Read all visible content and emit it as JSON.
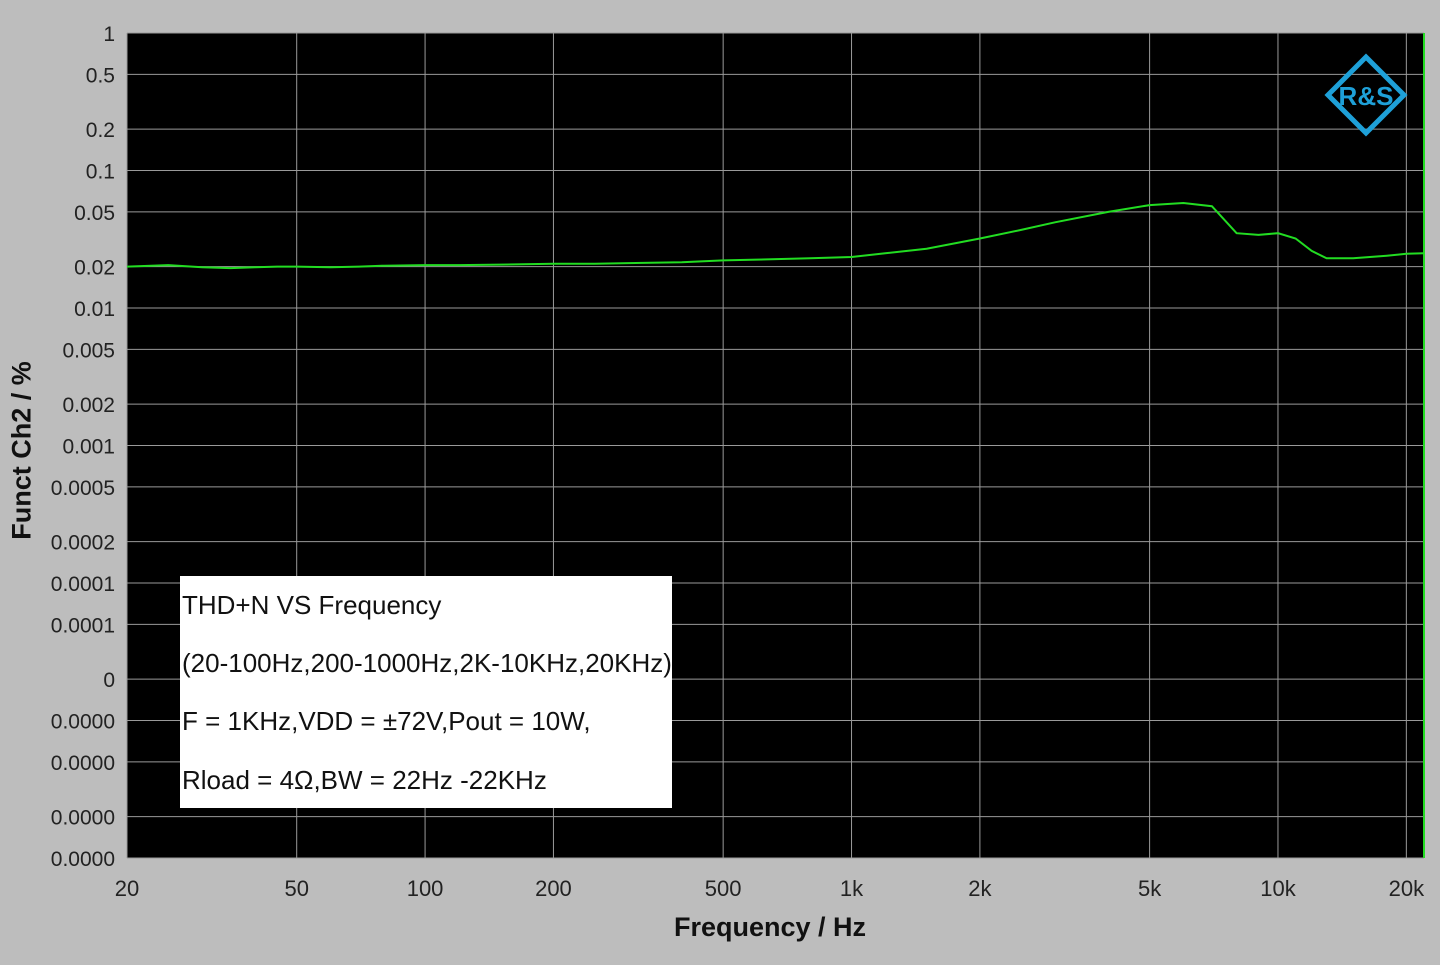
{
  "chart_data": {
    "type": "line",
    "xlabel": "Frequency / Hz",
    "ylabel": "Funct Ch2 / %",
    "x_scale": "log",
    "xlim": [
      20,
      22000
    ],
    "x_ticks": [
      20,
      50,
      100,
      200,
      500,
      1000,
      2000,
      5000,
      10000,
      20000
    ],
    "x_tick_labels": [
      "20",
      "50",
      "100",
      "200",
      "500",
      "1k",
      "2k",
      "5k",
      "10k",
      "20k"
    ],
    "y_scale": "log",
    "y_tick_labels": [
      "1",
      "0.5",
      "0.2",
      "0.1",
      "0.05",
      "0.02",
      "0.01",
      "0.005",
      "0.002",
      "0.001",
      "0.0005",
      "0.0002",
      "0.0001",
      "0.0001",
      "0",
      "0.0000",
      "0.0000",
      "0.0000",
      "0.0000"
    ],
    "grid": true,
    "background": "#000000",
    "line_color": "#22dd22",
    "series": [
      {
        "x": [
          20,
          25,
          30,
          35,
          40,
          45,
          50,
          60,
          70,
          80,
          100,
          120,
          150,
          200,
          250,
          300,
          400,
          500,
          600,
          800,
          1000,
          1200,
          1500,
          2000,
          2500,
          3000,
          4000,
          5000,
          6000,
          7000,
          8000,
          9000,
          10000,
          11000,
          12000,
          13000,
          15000,
          18000,
          20000,
          22000
        ],
        "y": [
          0.02,
          0.0205,
          0.0198,
          0.0195,
          0.0198,
          0.02,
          0.02,
          0.0198,
          0.02,
          0.0203,
          0.0205,
          0.0205,
          0.0207,
          0.021,
          0.021,
          0.0212,
          0.0215,
          0.0222,
          0.0225,
          0.023,
          0.0235,
          0.025,
          0.027,
          0.032,
          0.037,
          0.042,
          0.05,
          0.056,
          0.058,
          0.055,
          0.035,
          0.034,
          0.035,
          0.032,
          0.026,
          0.023,
          0.023,
          0.024,
          0.0248,
          0.025
        ]
      }
    ],
    "annotation": [
      "THD+N VS  Frequency",
      "(20-100Hz,200-1000Hz,2K-10KHz,20KHz)",
      "F = 1KHz,VDD = ±72V,Pout = 10W,",
      "Rload = 4Ω,BW = 22Hz -22KHz"
    ],
    "logo": "R&S"
  }
}
